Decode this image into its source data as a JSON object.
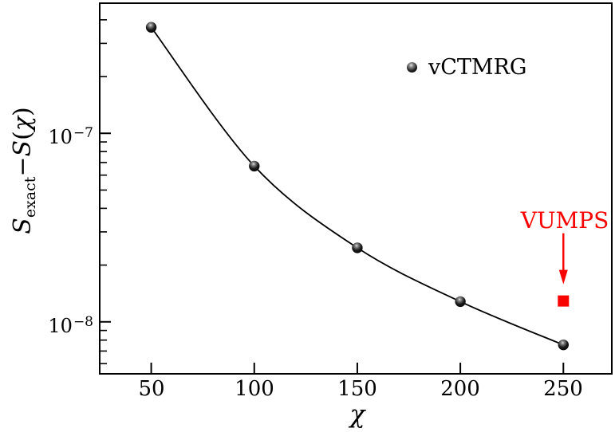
{
  "figure": {
    "background": "#ffffff",
    "axis_color": "#000000",
    "accent_red": "#f80400"
  },
  "ylabel": {
    "s1": "S",
    "sub": "exact",
    "minus": "−",
    "s2": "S",
    "open": "(",
    "chi": "χ",
    "close": ")"
  },
  "xlabel": {
    "chi": "χ"
  },
  "y_tick_labels": [
    {
      "base": "10",
      "exp": "−7"
    },
    {
      "base": "10",
      "exp": "−8"
    }
  ],
  "x_tick_labels": [
    "50",
    "100",
    "150",
    "200",
    "250"
  ],
  "legend": {
    "marker": "black-sphere",
    "label": "vCTMRG"
  },
  "annotation": {
    "label": "VUMPS",
    "marker": "red-square"
  },
  "chart_data": {
    "type": "scatter",
    "title": "",
    "xlabel": "χ",
    "ylabel": "S_exact − S(χ)",
    "yscale": "log",
    "xlim": [
      25,
      273.5
    ],
    "ylim": [
      5.3e-09,
      4.9e-07
    ],
    "x_ticks": [
      50,
      100,
      150,
      200,
      250
    ],
    "y_major_ticks": [
      1e-07,
      1e-08
    ],
    "grid": false,
    "legend_position": "upper right inside",
    "series": [
      {
        "name": "vCTMRG",
        "marker": "sphere",
        "color": "#000000",
        "line": true,
        "x": [
          50,
          100,
          150,
          200,
          250
        ],
        "y": [
          3.65e-07,
          6.7e-08,
          2.47e-08,
          1.28e-08,
          7.55e-09
        ]
      },
      {
        "name": "VUMPS",
        "marker": "square",
        "color": "#f80400",
        "line": false,
        "annotated_with_arrow": true,
        "x": [
          250
        ],
        "y": [
          1.29e-08
        ]
      }
    ]
  }
}
